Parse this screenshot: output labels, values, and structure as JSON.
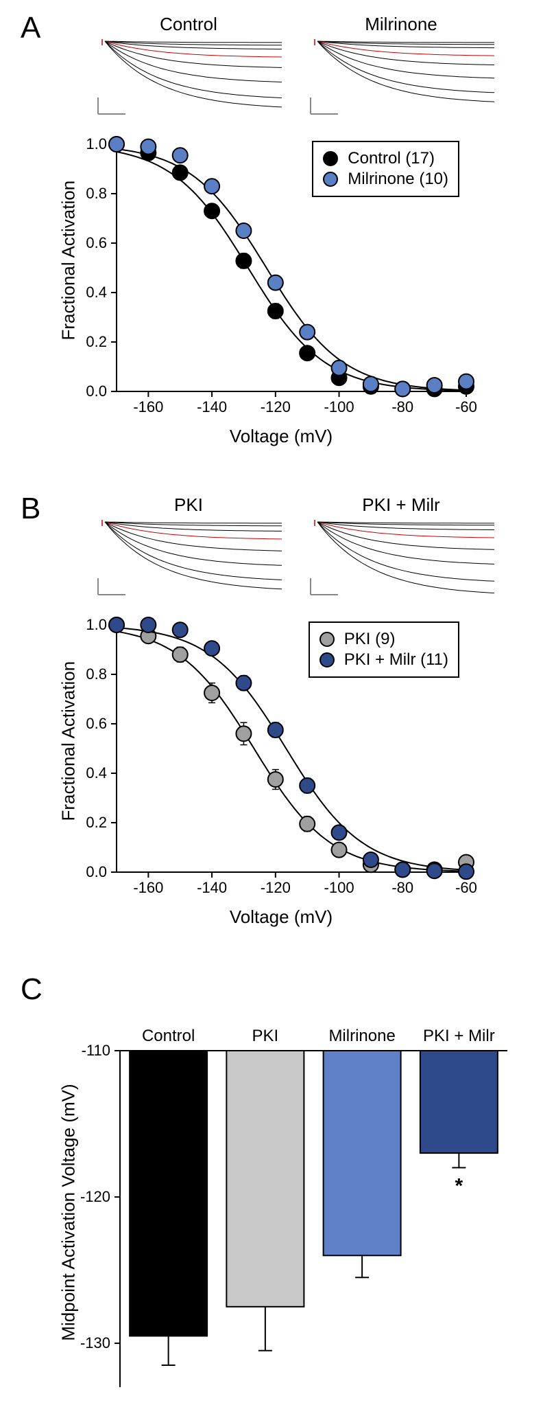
{
  "panelA": {
    "label": "A",
    "traces": [
      {
        "title": "Control"
      },
      {
        "title": "Milrinone"
      }
    ],
    "chart": {
      "type": "scatter",
      "ylabel": "Fractional Activation",
      "xlabel": "Voltage (mV)",
      "xlim": [
        -170,
        -60
      ],
      "ylim": [
        0,
        1.0
      ],
      "xticks": [
        -160,
        -140,
        -120,
        -100,
        -80,
        -60
      ],
      "yticks": [
        0.0,
        0.2,
        0.4,
        0.6,
        0.8,
        1.0
      ],
      "series": [
        {
          "name": "Control (17)",
          "color": "#000000",
          "marker": "circle",
          "x": [
            -170,
            -160,
            -150,
            -140,
            -130,
            -120,
            -110,
            -100,
            -90,
            -80,
            -70,
            -60
          ],
          "y": [
            1.0,
            0.965,
            0.885,
            0.73,
            0.528,
            0.325,
            0.155,
            0.055,
            0.02,
            0.01,
            0.01,
            0.02
          ],
          "yerr": [
            0,
            0.01,
            0.02,
            0.025,
            0.03,
            0.03,
            0.02,
            0.015,
            0.01,
            0.005,
            0.005,
            0.01
          ]
        },
        {
          "name": "Milrinone (10)",
          "color": "#5a7fc4",
          "marker": "circle",
          "x": [
            -170,
            -160,
            -150,
            -140,
            -130,
            -120,
            -110,
            -100,
            -90,
            -80,
            -70,
            -60
          ],
          "y": [
            1.0,
            0.99,
            0.955,
            0.83,
            0.65,
            0.44,
            0.24,
            0.095,
            0.03,
            0.01,
            0.025,
            0.04
          ],
          "yerr": [
            0,
            0.005,
            0.01,
            0.02,
            0.025,
            0.025,
            0.02,
            0.015,
            0.01,
            0.005,
            0.01,
            0.015
          ]
        }
      ],
      "marker_size": 11,
      "marker_border": "#000000",
      "line_color": "#000000",
      "line_width": 2,
      "background_color": "#ffffff",
      "axis_color": "#000000",
      "axis_width": 2,
      "tick_fontsize": 22,
      "label_fontsize": 26
    }
  },
  "panelB": {
    "label": "B",
    "traces": [
      {
        "title": "PKI"
      },
      {
        "title": "PKI + Milr"
      }
    ],
    "chart": {
      "type": "scatter",
      "ylabel": "Fractional Activation",
      "xlabel": "Voltage (mV)",
      "xlim": [
        -170,
        -60
      ],
      "ylim": [
        0,
        1.0
      ],
      "xticks": [
        -160,
        -140,
        -120,
        -100,
        -80,
        -60
      ],
      "yticks": [
        0.0,
        0.2,
        0.4,
        0.6,
        0.8,
        1.0
      ],
      "series": [
        {
          "name": "PKI (9)",
          "color": "#a0a0a0",
          "marker": "circle",
          "x": [
            -170,
            -160,
            -150,
            -140,
            -130,
            -120,
            -110,
            -100,
            -90,
            -80,
            -70,
            -60
          ],
          "y": [
            1.0,
            0.955,
            0.88,
            0.725,
            0.56,
            0.375,
            0.195,
            0.09,
            0.03,
            0.01,
            0.01,
            0.04
          ],
          "yerr": [
            0,
            0.015,
            0.03,
            0.04,
            0.045,
            0.04,
            0.03,
            0.02,
            0.015,
            0.01,
            0.005,
            0.02
          ]
        },
        {
          "name": "PKI + Milr (11)",
          "color": "#2e4a8a",
          "marker": "circle",
          "x": [
            -170,
            -160,
            -150,
            -140,
            -130,
            -120,
            -110,
            -100,
            -90,
            -80,
            -70,
            -60
          ],
          "y": [
            1.0,
            1.0,
            0.98,
            0.905,
            0.765,
            0.575,
            0.35,
            0.16,
            0.05,
            0.01,
            0.005,
            0.002
          ],
          "yerr": [
            0,
            0.005,
            0.01,
            0.02,
            0.03,
            0.03,
            0.03,
            0.02,
            0.015,
            0.005,
            0.005,
            0.005
          ]
        }
      ],
      "marker_size": 11,
      "marker_border": "#000000",
      "line_color": "#000000",
      "line_width": 2,
      "background_color": "#ffffff",
      "axis_color": "#000000",
      "axis_width": 2,
      "tick_fontsize": 22,
      "label_fontsize": 26
    }
  },
  "panelC": {
    "label": "C",
    "chart": {
      "type": "bar",
      "ylabel": "Midpoint Activation Voltage (mV)",
      "ylim": [
        -133,
        -110
      ],
      "yticks": [
        -110,
        -120,
        -130
      ],
      "categories": [
        "Control",
        "PKI",
        "Milrinone",
        "PKI + Milr"
      ],
      "values": [
        -129.5,
        -127.5,
        -124,
        -117
      ],
      "errors": [
        2,
        3,
        1.5,
        1
      ],
      "bar_colors": [
        "#000000",
        "#c8c8c8",
        "#6080c8",
        "#2e4a8a"
      ],
      "bar_border": "#000000",
      "bar_width": 0.8,
      "significance": [
        null,
        null,
        null,
        "*"
      ],
      "background_color": "#ffffff",
      "axis_color": "#000000",
      "axis_width": 2,
      "tick_fontsize": 22,
      "label_fontsize": 26,
      "category_fontsize": 24
    }
  },
  "trace_style": {
    "line_color": "#000000",
    "highlight_color": "#cc0000",
    "scale_bar_color": "#888888",
    "line_width": 1
  }
}
